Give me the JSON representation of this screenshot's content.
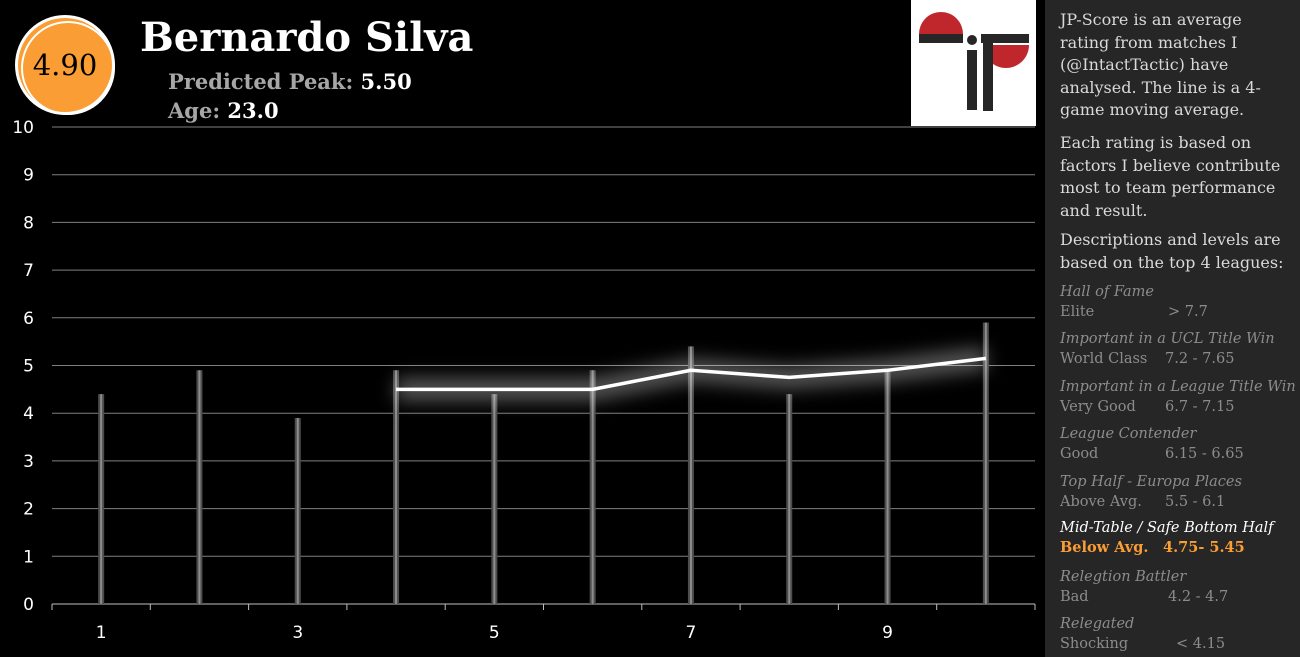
{
  "header": {
    "score": "4.90",
    "player_name": "Bernardo Silva",
    "peak_label": "Predicted Peak:",
    "peak_value": "5.50",
    "age_label": "Age:",
    "age_value": "23.0"
  },
  "sidebar": {
    "intro": "JP-Score is an average rating from matches I (@IntactTactic) have analysed. The line is a 4-game moving average.",
    "factors": "Each rating is based on factors I believe contribute most to team performance and result.",
    "levels_intro": "Descriptions and levels are based on the top 4 leagues:",
    "levels": [
      {
        "desc": "Hall of Fame",
        "name": "Elite",
        "range": "> 7.7",
        "active": false
      },
      {
        "desc": "Important in a UCL Title Win",
        "name": "World Class",
        "range": "7.2 - 7.65",
        "active": false
      },
      {
        "desc": "Important in a League Title Win",
        "name": "Very Good",
        "range": "6.7 - 7.15",
        "active": false
      },
      {
        "desc": "League Contender",
        "name": "Good",
        "range": "6.15 - 6.65",
        "active": false
      },
      {
        "desc": "Top Half - Europa Places",
        "name": "Above Avg.",
        "range": "5.5 - 6.1",
        "active": false
      },
      {
        "desc": "Mid-Table / Safe Bottom Half",
        "name": "Below Avg.",
        "range": "4.75- 5.45",
        "active": true
      },
      {
        "desc": "Relegtion Battler",
        "name": "Bad",
        "range": "4.2 - 4.7",
        "active": false
      },
      {
        "desc": "Relegated",
        "name": "Shocking",
        "range": "< 4.15",
        "active": false
      }
    ]
  },
  "colors": {
    "accent": "#f99d34",
    "sidebar_bg": "#262626",
    "logo_red": "#c0272d",
    "logo_dark": "#262626"
  },
  "chart_data": {
    "type": "bar",
    "x": [
      1,
      2,
      3,
      4,
      5,
      6,
      7,
      8,
      9,
      10
    ],
    "x_tick_labels": [
      "1",
      "3",
      "5",
      "7",
      "9"
    ],
    "x_tick_values": [
      1,
      3,
      5,
      7,
      9
    ],
    "ylim": [
      0,
      10
    ],
    "y_ticks": [
      0,
      1,
      2,
      3,
      4,
      5,
      6,
      7,
      8,
      9,
      10
    ],
    "grid": true,
    "series": [
      {
        "kind": "bar",
        "values": [
          4.4,
          4.9,
          3.9,
          4.9,
          4.4,
          4.9,
          5.4,
          4.4,
          4.9,
          5.9
        ]
      },
      {
        "kind": "line",
        "x": [
          4,
          5,
          6,
          7,
          8,
          9,
          10
        ],
        "values": [
          4.5,
          4.5,
          4.5,
          4.9,
          4.75,
          4.9,
          5.15
        ]
      }
    ]
  }
}
